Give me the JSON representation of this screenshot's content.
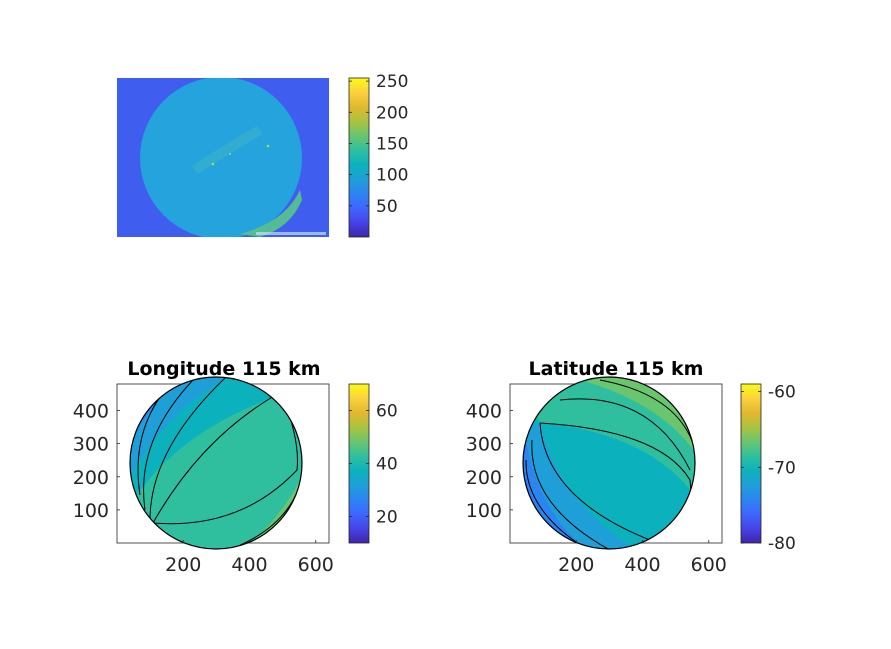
{
  "colors": {
    "parula": [
      "#3e26a8",
      "#4743e8",
      "#3e66fd",
      "#2b85f0",
      "#1f9fd7",
      "#0bb2bd",
      "#2fbf9f",
      "#6ac56f",
      "#aac33f",
      "#e2b82e",
      "#fbd13e",
      "#f9fb15"
    ],
    "axis": "#262626",
    "contour": "#000000",
    "background": "#ffffff"
  },
  "chart_data": [
    {
      "type": "heatmap",
      "id": "raw-image",
      "title": "",
      "colorbar": {
        "range": [
          0,
          255
        ],
        "ticks": [
          50,
          100,
          150,
          200,
          250
        ],
        "tick_labels": [
          "50",
          "100",
          "150",
          "200",
          "250"
        ]
      },
      "axes_visible": false,
      "disk_level": 120,
      "background_level": 60
    },
    {
      "type": "heatmap",
      "id": "longitude",
      "title": "Longitude 115 km",
      "x_ticks": [
        200,
        400,
        600
      ],
      "x_tick_labels": [
        "200",
        "400",
        "600"
      ],
      "y_ticks": [
        100,
        200,
        300,
        400
      ],
      "y_tick_labels": [
        "100",
        "200",
        "300",
        "400"
      ],
      "xlim": [
        0,
        640
      ],
      "ylim": [
        0,
        480
      ],
      "colorbar": {
        "range": [
          10,
          70
        ],
        "ticks": [
          20,
          40,
          60
        ],
        "tick_labels": [
          "20",
          "40",
          "60"
        ]
      },
      "contours": true
    },
    {
      "type": "heatmap",
      "id": "latitude",
      "title": "Latitude 115 km",
      "x_ticks": [
        200,
        400,
        600
      ],
      "x_tick_labels": [
        "200",
        "400",
        "600"
      ],
      "y_ticks": [
        100,
        200,
        300,
        400
      ],
      "y_tick_labels": [
        "100",
        "200",
        "300",
        "400"
      ],
      "xlim": [
        0,
        640
      ],
      "ylim": [
        0,
        480
      ],
      "colorbar": {
        "range": [
          -80,
          -59
        ],
        "ticks": [
          -80,
          -70,
          -60
        ],
        "tick_labels": [
          "-80",
          "-70",
          "-60"
        ]
      },
      "contours": true
    }
  ]
}
